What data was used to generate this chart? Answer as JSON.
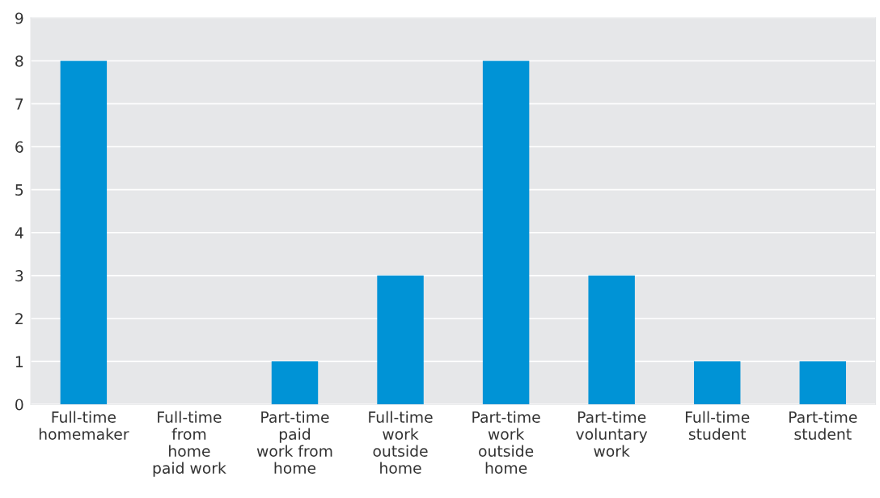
{
  "chart_data": {
    "type": "bar",
    "categories": [
      "Full-time\nhomemaker",
      "Full-time\nfrom\nhome\npaid work",
      "Part-time\npaid\nwork from\nhome",
      "Full-time\nwork\noutside\nhome",
      "Part-time\nwork\noutside\nhome",
      "Part-time\nvoluntary\nwork",
      "Full-time\nstudent",
      "Part-time\nstudent"
    ],
    "values": [
      8,
      0,
      1,
      3,
      8,
      3,
      1,
      1
    ],
    "color": "#0093d6",
    "ylim": [
      0,
      9
    ],
    "yticks": [
      0,
      1,
      2,
      3,
      4,
      5,
      6,
      7,
      8,
      9
    ],
    "grid": "y"
  }
}
